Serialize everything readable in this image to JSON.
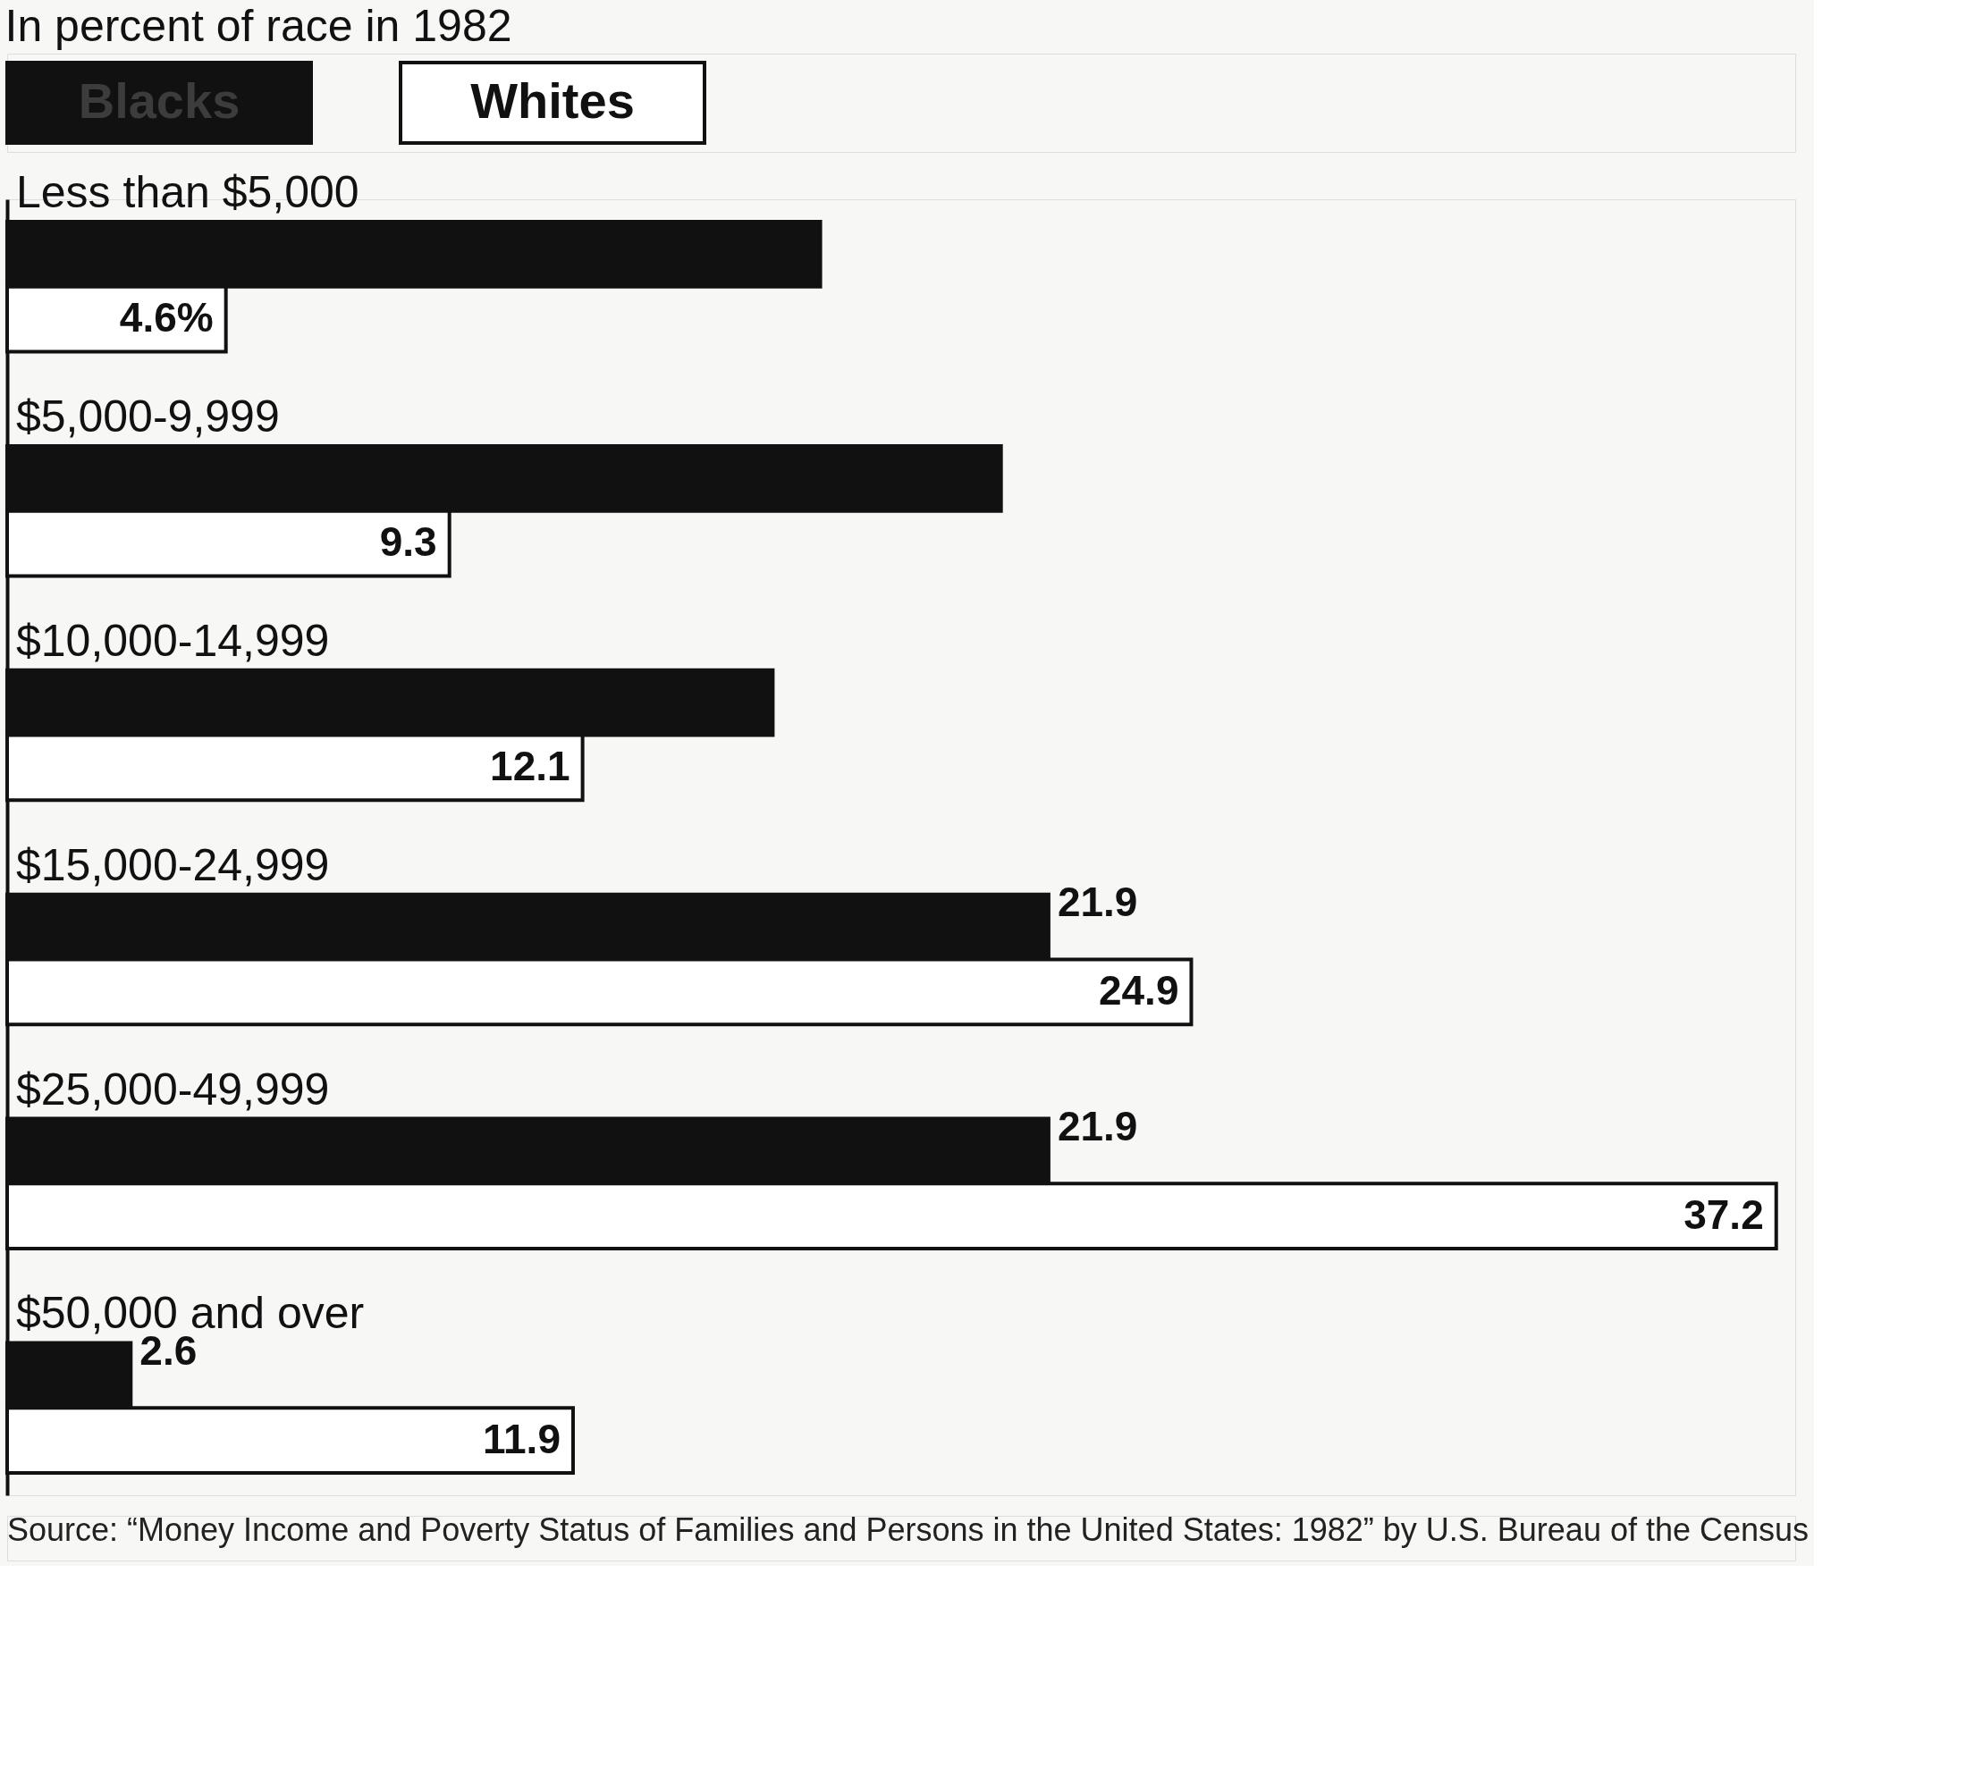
{
  "chart_data": {
    "type": "bar",
    "orientation": "horizontal",
    "title": "In percent of race in 1982",
    "categories": [
      "Less than $5,000",
      "$5,000-9,999",
      "$10,000-14,999",
      "$15,000-24,999",
      "$25,000-49,999",
      "$50,000 and over"
    ],
    "series": [
      {
        "name": "Blacks",
        "color": "#111111",
        "values": [
          17.1,
          20.9,
          16.1,
          21.9,
          21.9,
          2.6
        ],
        "value_labels": [
          null,
          null,
          null,
          "21.9",
          "21.9",
          "2.6"
        ]
      },
      {
        "name": "Whites",
        "color": "#ffffff",
        "values": [
          4.6,
          9.3,
          12.1,
          24.9,
          37.2,
          11.9
        ],
        "value_labels": [
          "4.6%",
          "9.3",
          "12.1",
          "24.9",
          "37.2",
          "11.9"
        ]
      }
    ],
    "xlim": [
      0,
      37.6
    ],
    "tick_labels": false,
    "legend": "top left",
    "annotations": [
      "Source: “Money Income and Poverty Status of Families and Persons in the United States: 1982” by U.S. Bureau of the Census"
    ]
  }
}
